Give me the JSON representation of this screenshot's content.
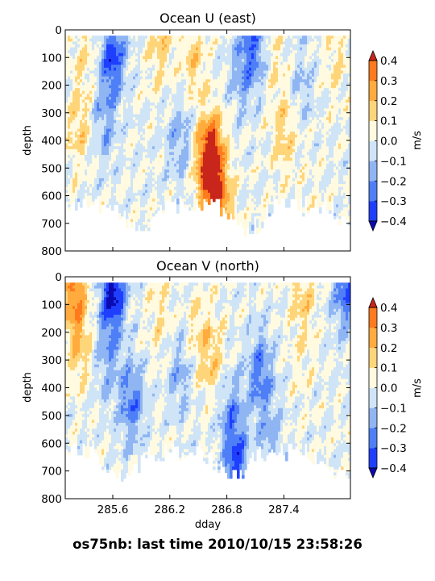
{
  "figure": {
    "footer": "os75nb: last time 2010/10/15 23:58:26"
  },
  "chart_data": [
    {
      "type": "heatmap",
      "subtype": "filled-contour",
      "title": "Ocean U (east)",
      "xlabel": "",
      "ylabel": "depth",
      "xlim": [
        285.1,
        288.1
      ],
      "ylim": [
        800,
        0
      ],
      "x_ticks": [
        285.6,
        286.2,
        286.8,
        287.4
      ],
      "x_tick_labels_shown": false,
      "y_ticks": [
        0,
        100,
        200,
        300,
        400,
        500,
        600,
        700,
        800
      ],
      "data_depth_limit": 760,
      "colorbar": {
        "label": "m/s",
        "levels": [
          -0.4,
          -0.3,
          -0.2,
          -0.1,
          0.0,
          0.1,
          0.2,
          0.3,
          0.4
        ],
        "tick_labels": [
          "−0.4",
          "−0.3",
          "−0.2",
          "−0.1",
          "0.0",
          "0.1",
          "0.2",
          "0.3",
          "0.4"
        ],
        "colors": [
          "#1f3fff",
          "#4f7ff7",
          "#8fb5f2",
          "#cfe4f7",
          "#fffae0",
          "#ffd57a",
          "#ffab3d",
          "#ff7a1d"
        ],
        "extend": "both",
        "extend_low_color": "#0b0bb0",
        "extend_high_color": "#c8261a"
      },
      "features": [
        {
          "x": 285.6,
          "depth": 100,
          "value": -0.35
        },
        {
          "x": 285.5,
          "depth": 350,
          "value": -0.15
        },
        {
          "x": 285.25,
          "depth": 350,
          "value": 0.15
        },
        {
          "x": 285.3,
          "depth": 80,
          "value": 0.1
        },
        {
          "x": 286.1,
          "depth": 60,
          "value": 0.15
        },
        {
          "x": 286.3,
          "depth": 400,
          "value": -0.15
        },
        {
          "x": 286.45,
          "depth": 100,
          "value": 0.15
        },
        {
          "x": 286.65,
          "depth": 450,
          "value": 0.3
        },
        {
          "x": 286.6,
          "depth": 500,
          "value": 0.35
        },
        {
          "x": 286.75,
          "depth": 650,
          "value": 0.25
        },
        {
          "x": 286.95,
          "depth": 150,
          "value": -0.15
        },
        {
          "x": 287.1,
          "depth": 60,
          "value": -0.25
        },
        {
          "x": 287.3,
          "depth": 100,
          "value": 0.1
        },
        {
          "x": 287.4,
          "depth": 380,
          "value": 0.15
        },
        {
          "x": 287.6,
          "depth": 200,
          "value": -0.1
        },
        {
          "x": 287.7,
          "depth": 600,
          "value": 0.05
        },
        {
          "x": 287.95,
          "depth": 100,
          "value": 0.1
        }
      ]
    },
    {
      "type": "heatmap",
      "subtype": "filled-contour",
      "title": "Ocean V (north)",
      "xlabel": "dday",
      "ylabel": "depth",
      "xlim": [
        285.1,
        288.1
      ],
      "ylim": [
        800,
        0
      ],
      "x_ticks": [
        285.6,
        286.2,
        286.8,
        287.4
      ],
      "x_tick_labels": [
        "285.6",
        "286.2",
        "286.8",
        "287.4"
      ],
      "y_ticks": [
        0,
        100,
        200,
        300,
        400,
        500,
        600,
        700,
        800
      ],
      "data_depth_limit": 760,
      "colorbar": {
        "label": "m/s",
        "levels": [
          -0.4,
          -0.3,
          -0.2,
          -0.1,
          0.0,
          0.1,
          0.2,
          0.3,
          0.4
        ],
        "tick_labels": [
          "−0.4",
          "−0.3",
          "−0.2",
          "−0.1",
          "0.0",
          "0.1",
          "0.2",
          "0.3",
          "0.4"
        ],
        "colors": [
          "#1f3fff",
          "#4f7ff7",
          "#8fb5f2",
          "#cfe4f7",
          "#fffae0",
          "#ffd57a",
          "#ffab3d",
          "#ff7a1d"
        ],
        "extend": "both",
        "extend_low_color": "#0b0bb0",
        "extend_high_color": "#c8261a"
      },
      "features": [
        {
          "x": 285.2,
          "depth": 50,
          "value": 0.3
        },
        {
          "x": 285.6,
          "depth": 50,
          "value": -0.45
        },
        {
          "x": 285.55,
          "depth": 300,
          "value": -0.15
        },
        {
          "x": 285.25,
          "depth": 250,
          "value": 0.15
        },
        {
          "x": 285.8,
          "depth": 450,
          "value": -0.25
        },
        {
          "x": 286.1,
          "depth": 150,
          "value": 0.1
        },
        {
          "x": 286.3,
          "depth": 350,
          "value": -0.15
        },
        {
          "x": 286.5,
          "depth": 200,
          "value": 0.1
        },
        {
          "x": 286.65,
          "depth": 300,
          "value": 0.15
        },
        {
          "x": 286.85,
          "depth": 500,
          "value": -0.2
        },
        {
          "x": 286.9,
          "depth": 700,
          "value": -0.3
        },
        {
          "x": 287.15,
          "depth": 350,
          "value": -0.25
        },
        {
          "x": 287.25,
          "depth": 600,
          "value": -0.15
        },
        {
          "x": 287.6,
          "depth": 60,
          "value": 0.15
        },
        {
          "x": 287.6,
          "depth": 300,
          "value": 0.05
        },
        {
          "x": 288.05,
          "depth": 40,
          "value": -0.3
        }
      ]
    }
  ]
}
